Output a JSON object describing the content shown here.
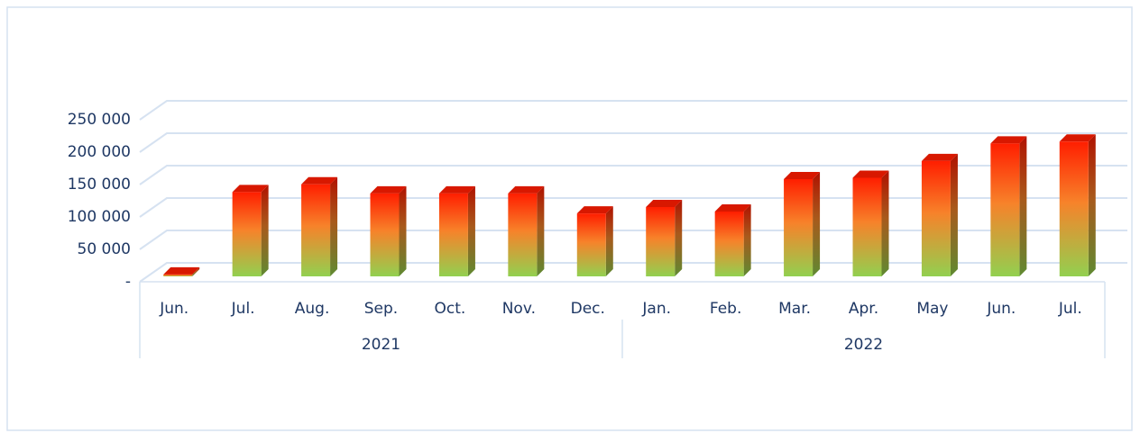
{
  "chart_data": {
    "type": "bar3d",
    "categories": [
      "Jun.",
      "Jul.",
      "Aug.",
      "Sep.",
      "Oct.",
      "Nov.",
      "Dec.",
      "Jan.",
      "Feb.",
      "Mar.",
      "Apr.",
      "May",
      "Jun.",
      "Jul."
    ],
    "groups": [
      {
        "label": "2021",
        "count": 7
      },
      {
        "label": "2022",
        "count": 7
      }
    ],
    "values": [
      3000,
      130000,
      142000,
      128000,
      128000,
      128000,
      97000,
      107000,
      100000,
      150000,
      152000,
      178000,
      205000,
      208000
    ],
    "ylim": [
      0,
      250000
    ],
    "yticks": [
      {
        "value": 0,
        "label": "-"
      },
      {
        "value": 50000,
        "label": "50 000"
      },
      {
        "value": 100000,
        "label": "100 000"
      },
      {
        "value": 150000,
        "label": "150 000"
      },
      {
        "value": 200000,
        "label": "200 000"
      },
      {
        "value": 250000,
        "label": "250 000"
      }
    ],
    "grid": true
  }
}
